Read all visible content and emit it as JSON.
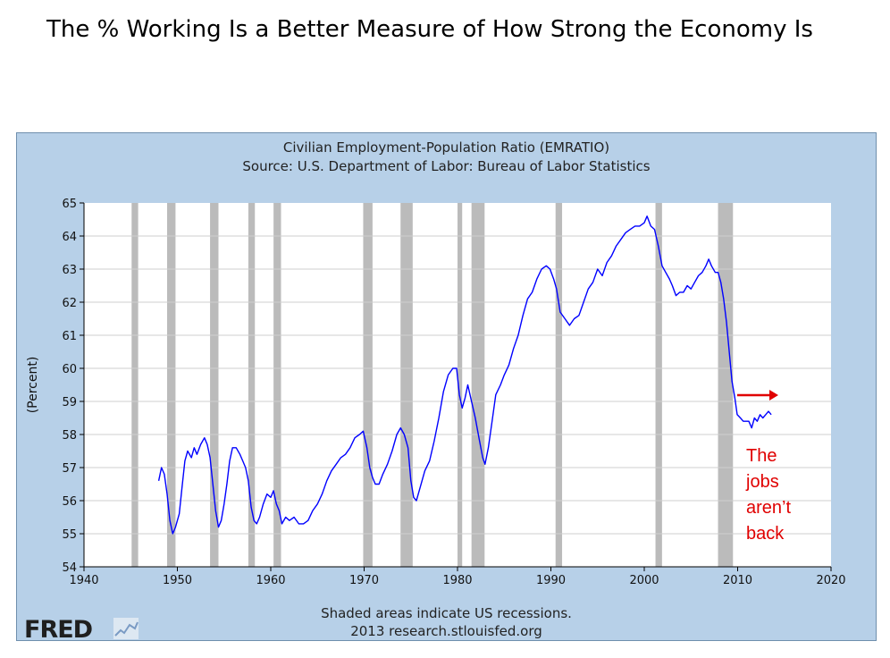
{
  "slide": {
    "title": "The % Working Is a Better Measure of How Strong the Economy Is"
  },
  "chart_data": {
    "type": "line",
    "title": "Civilian Employment-Population Ratio (EMRATIO)",
    "subtitle": "Source: U.S. Department of Labor: Bureau of Labor Statistics",
    "ylabel": "(Percent)",
    "xlabel": "",
    "xlim": [
      1940,
      2020
    ],
    "ylim": [
      54,
      65
    ],
    "x_ticks": [
      "1940",
      "1950",
      "1960",
      "1970",
      "1980",
      "1990",
      "2000",
      "2010",
      "2020"
    ],
    "y_ticks": [
      "54",
      "55",
      "56",
      "57",
      "58",
      "59",
      "60",
      "61",
      "62",
      "63",
      "64",
      "65"
    ],
    "grid": true,
    "line_color": "#0000ff",
    "recession_color": "#bbbbbb",
    "recessions": [
      [
        1945.1,
        1945.8
      ],
      [
        1948.9,
        1949.8
      ],
      [
        1953.5,
        1954.4
      ],
      [
        1957.6,
        1958.3
      ],
      [
        1960.3,
        1961.1
      ],
      [
        1969.9,
        1970.9
      ],
      [
        1973.9,
        1975.2
      ],
      [
        1980.0,
        1980.5
      ],
      [
        1981.5,
        1982.9
      ],
      [
        1990.5,
        1991.2
      ],
      [
        2001.2,
        2001.9
      ],
      [
        2007.9,
        2009.5
      ]
    ],
    "series": [
      {
        "points": [
          [
            1948.0,
            56.6
          ],
          [
            1948.3,
            57.0
          ],
          [
            1948.6,
            56.8
          ],
          [
            1948.9,
            56.2
          ],
          [
            1949.2,
            55.4
          ],
          [
            1949.5,
            55.0
          ],
          [
            1949.8,
            55.2
          ],
          [
            1950.2,
            55.6
          ],
          [
            1950.5,
            56.4
          ],
          [
            1950.8,
            57.2
          ],
          [
            1951.1,
            57.5
          ],
          [
            1951.5,
            57.3
          ],
          [
            1951.8,
            57.6
          ],
          [
            1952.1,
            57.4
          ],
          [
            1952.5,
            57.7
          ],
          [
            1952.9,
            57.9
          ],
          [
            1953.2,
            57.7
          ],
          [
            1953.5,
            57.3
          ],
          [
            1953.8,
            56.5
          ],
          [
            1954.1,
            55.7
          ],
          [
            1954.4,
            55.2
          ],
          [
            1954.7,
            55.4
          ],
          [
            1955.0,
            55.9
          ],
          [
            1955.3,
            56.5
          ],
          [
            1955.6,
            57.2
          ],
          [
            1955.9,
            57.6
          ],
          [
            1956.3,
            57.6
          ],
          [
            1956.7,
            57.4
          ],
          [
            1957.0,
            57.2
          ],
          [
            1957.3,
            57.0
          ],
          [
            1957.6,
            56.6
          ],
          [
            1957.9,
            55.8
          ],
          [
            1958.2,
            55.4
          ],
          [
            1958.5,
            55.3
          ],
          [
            1958.8,
            55.5
          ],
          [
            1959.2,
            55.9
          ],
          [
            1959.6,
            56.2
          ],
          [
            1960.0,
            56.1
          ],
          [
            1960.3,
            56.3
          ],
          [
            1960.6,
            55.9
          ],
          [
            1960.9,
            55.7
          ],
          [
            1961.2,
            55.3
          ],
          [
            1961.6,
            55.5
          ],
          [
            1962.0,
            55.4
          ],
          [
            1962.5,
            55.5
          ],
          [
            1963.0,
            55.3
          ],
          [
            1963.5,
            55.3
          ],
          [
            1964.0,
            55.4
          ],
          [
            1964.5,
            55.7
          ],
          [
            1965.0,
            55.9
          ],
          [
            1965.5,
            56.2
          ],
          [
            1966.0,
            56.6
          ],
          [
            1966.5,
            56.9
          ],
          [
            1967.0,
            57.1
          ],
          [
            1967.5,
            57.3
          ],
          [
            1968.0,
            57.4
          ],
          [
            1968.5,
            57.6
          ],
          [
            1969.0,
            57.9
          ],
          [
            1969.5,
            58.0
          ],
          [
            1969.9,
            58.1
          ],
          [
            1970.3,
            57.6
          ],
          [
            1970.6,
            57.0
          ],
          [
            1970.9,
            56.7
          ],
          [
            1971.2,
            56.5
          ],
          [
            1971.6,
            56.5
          ],
          [
            1972.0,
            56.8
          ],
          [
            1972.5,
            57.1
          ],
          [
            1973.0,
            57.5
          ],
          [
            1973.5,
            58.0
          ],
          [
            1973.9,
            58.2
          ],
          [
            1974.3,
            58.0
          ],
          [
            1974.7,
            57.6
          ],
          [
            1975.0,
            56.6
          ],
          [
            1975.3,
            56.1
          ],
          [
            1975.6,
            56.0
          ],
          [
            1976.0,
            56.4
          ],
          [
            1976.5,
            56.9
          ],
          [
            1977.0,
            57.2
          ],
          [
            1977.5,
            57.8
          ],
          [
            1978.0,
            58.5
          ],
          [
            1978.5,
            59.3
          ],
          [
            1979.0,
            59.8
          ],
          [
            1979.5,
            60.0
          ],
          [
            1979.9,
            60.0
          ],
          [
            1980.2,
            59.2
          ],
          [
            1980.5,
            58.8
          ],
          [
            1980.8,
            59.1
          ],
          [
            1981.1,
            59.5
          ],
          [
            1981.5,
            59.0
          ],
          [
            1981.9,
            58.5
          ],
          [
            1982.3,
            57.9
          ],
          [
            1982.7,
            57.3
          ],
          [
            1982.95,
            57.1
          ],
          [
            1983.3,
            57.6
          ],
          [
            1983.7,
            58.4
          ],
          [
            1984.1,
            59.2
          ],
          [
            1984.6,
            59.5
          ],
          [
            1985.0,
            59.8
          ],
          [
            1985.5,
            60.1
          ],
          [
            1986.0,
            60.6
          ],
          [
            1986.5,
            61.0
          ],
          [
            1987.0,
            61.6
          ],
          [
            1987.5,
            62.1
          ],
          [
            1988.0,
            62.3
          ],
          [
            1988.5,
            62.7
          ],
          [
            1989.0,
            63.0
          ],
          [
            1989.5,
            63.1
          ],
          [
            1989.9,
            63.0
          ],
          [
            1990.3,
            62.7
          ],
          [
            1990.6,
            62.4
          ],
          [
            1991.0,
            61.7
          ],
          [
            1991.5,
            61.5
          ],
          [
            1992.0,
            61.3
          ],
          [
            1992.5,
            61.5
          ],
          [
            1993.0,
            61.6
          ],
          [
            1993.5,
            62.0
          ],
          [
            1994.0,
            62.4
          ],
          [
            1994.5,
            62.6
          ],
          [
            1995.0,
            63.0
          ],
          [
            1995.5,
            62.8
          ],
          [
            1996.0,
            63.2
          ],
          [
            1996.5,
            63.4
          ],
          [
            1997.0,
            63.7
          ],
          [
            1997.5,
            63.9
          ],
          [
            1998.0,
            64.1
          ],
          [
            1998.5,
            64.2
          ],
          [
            1999.0,
            64.3
          ],
          [
            1999.5,
            64.3
          ],
          [
            2000.0,
            64.4
          ],
          [
            2000.3,
            64.6
          ],
          [
            2000.7,
            64.3
          ],
          [
            2001.1,
            64.2
          ],
          [
            2001.5,
            63.7
          ],
          [
            2001.9,
            63.1
          ],
          [
            2002.3,
            62.9
          ],
          [
            2002.7,
            62.7
          ],
          [
            2003.0,
            62.5
          ],
          [
            2003.4,
            62.2
          ],
          [
            2003.8,
            62.3
          ],
          [
            2004.2,
            62.3
          ],
          [
            2004.6,
            62.5
          ],
          [
            2005.0,
            62.4
          ],
          [
            2005.4,
            62.6
          ],
          [
            2005.8,
            62.8
          ],
          [
            2006.2,
            62.9
          ],
          [
            2006.6,
            63.1
          ],
          [
            2006.9,
            63.3
          ],
          [
            2007.2,
            63.1
          ],
          [
            2007.6,
            62.9
          ],
          [
            2007.9,
            62.9
          ],
          [
            2008.2,
            62.6
          ],
          [
            2008.5,
            62.1
          ],
          [
            2008.8,
            61.4
          ],
          [
            2009.1,
            60.5
          ],
          [
            2009.4,
            59.6
          ],
          [
            2009.7,
            59.1
          ],
          [
            2009.95,
            58.6
          ],
          [
            2010.3,
            58.5
          ],
          [
            2010.6,
            58.4
          ],
          [
            2010.9,
            58.4
          ],
          [
            2011.2,
            58.4
          ],
          [
            2011.5,
            58.2
          ],
          [
            2011.8,
            58.5
          ],
          [
            2012.1,
            58.4
          ],
          [
            2012.4,
            58.6
          ],
          [
            2012.7,
            58.5
          ],
          [
            2013.0,
            58.6
          ],
          [
            2013.3,
            58.7
          ],
          [
            2013.6,
            58.6
          ]
        ]
      }
    ]
  },
  "footnote": "Shaded areas indicate US recessions.",
  "footnote2": "2013 research.stlouisfed.org",
  "logo_text": "FRED",
  "annotation": {
    "lines": [
      "The",
      "jobs",
      "aren’t",
      "back"
    ],
    "color": "#e00000"
  }
}
